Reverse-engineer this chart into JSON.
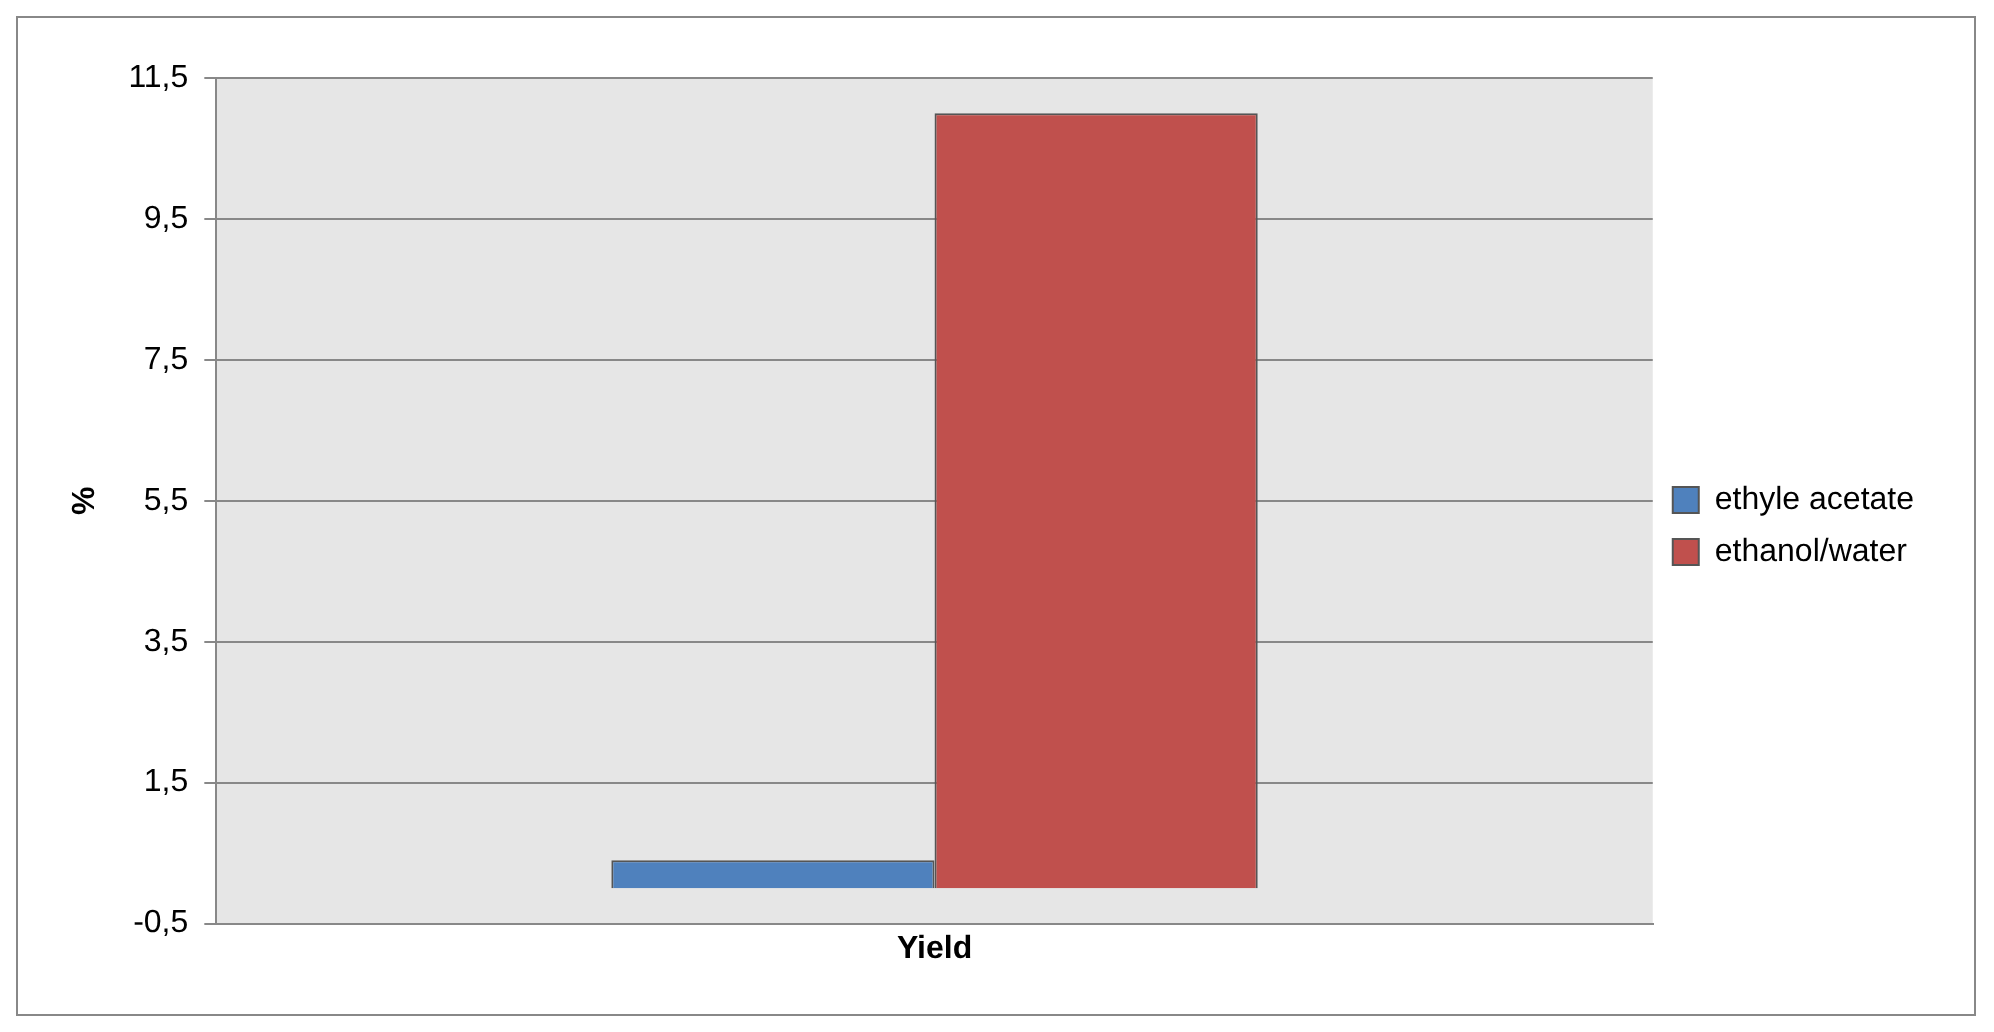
{
  "chart_data": {
    "type": "bar",
    "ylabel": "%",
    "categories": [
      "Yield"
    ],
    "series": [
      {
        "name": "ethyle acetate",
        "color": "#4f81bd",
        "values": [
          0.4
        ]
      },
      {
        "name": "ethanol/water",
        "color": "#c0504d",
        "values": [
          11.0
        ]
      }
    ],
    "ylim": [
      -0.5,
      11.5
    ],
    "yticks": [
      {
        "value": -0.5,
        "label": "-0,5"
      },
      {
        "value": 1.5,
        "label": "1,5"
      },
      {
        "value": 3.5,
        "label": "3,5"
      },
      {
        "value": 5.5,
        "label": "5,5"
      },
      {
        "value": 7.5,
        "label": "7,5"
      },
      {
        "value": 9.5,
        "label": "9,5"
      },
      {
        "value": 11.5,
        "label": "11,5"
      }
    ],
    "grid": "y",
    "legend": "right"
  }
}
